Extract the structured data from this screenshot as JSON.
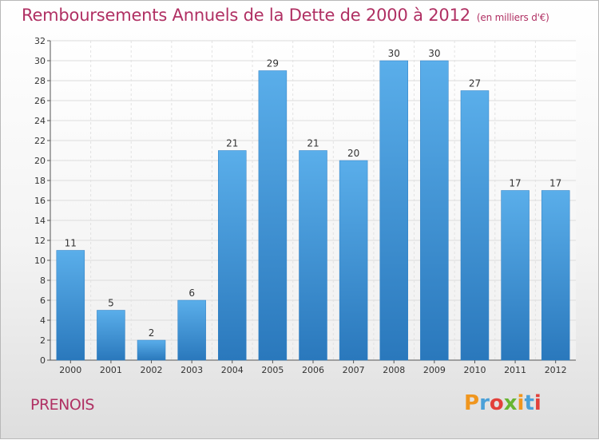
{
  "page": {
    "title": "Remboursements Annuels de la Dette de 2000 à 2012",
    "unit": "(en milliers d'€)",
    "commune": "PRENOIS",
    "logo_text": "Proxiti",
    "logo_colors": [
      "#f0961e",
      "#4aa0d8",
      "#e2403a",
      "#67b531",
      "#f0961e",
      "#4aa0d8",
      "#e2403a"
    ]
  },
  "chart_data": {
    "type": "bar",
    "title": "Remboursements Annuels de la Dette de 2000 à 2012",
    "unit": "(en milliers d'€)",
    "xlabel": "",
    "ylabel": "",
    "categories": [
      "2000",
      "2001",
      "2002",
      "2003",
      "2004",
      "2005",
      "2006",
      "2007",
      "2008",
      "2009",
      "2010",
      "2011",
      "2012"
    ],
    "values": [
      11,
      5,
      2,
      6,
      21,
      29,
      21,
      20,
      30,
      30,
      27,
      17,
      17
    ],
    "ylim": [
      0,
      32
    ],
    "yticks": [
      0,
      2,
      4,
      6,
      8,
      10,
      12,
      14,
      16,
      18,
      20,
      22,
      24,
      26,
      28,
      30,
      32
    ],
    "grid": true,
    "bar_color": "#3d8fd6",
    "title_color": "#b03063"
  }
}
